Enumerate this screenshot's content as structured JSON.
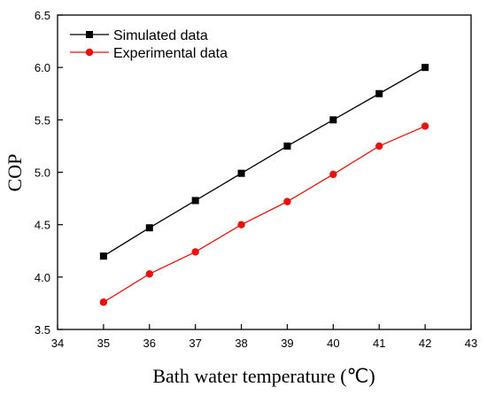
{
  "chart_data": {
    "type": "line",
    "xlabel": "Bath water temperature (℃)",
    "ylabel": "COP",
    "xlim": [
      34,
      43
    ],
    "ylim": [
      3.5,
      6.5
    ],
    "xticks": [
      "34",
      "35",
      "36",
      "37",
      "38",
      "39",
      "40",
      "41",
      "42",
      "43"
    ],
    "yticks": [
      "3.5",
      "4.0",
      "4.5",
      "5.0",
      "5.5",
      "6.0",
      "6.5"
    ],
    "grid": false,
    "legend_position": "top-left",
    "x": [
      35,
      36,
      37,
      38,
      39,
      40,
      41,
      42
    ],
    "series": [
      {
        "name": "Simulated data",
        "marker": "square",
        "color": "#000000",
        "values": [
          4.2,
          4.47,
          4.73,
          4.99,
          5.25,
          5.5,
          5.75,
          6.0
        ]
      },
      {
        "name": "Experimental data",
        "marker": "circle",
        "color": "#e8120c",
        "values": [
          3.76,
          4.03,
          4.24,
          4.5,
          4.72,
          4.98,
          5.25,
          5.44
        ]
      }
    ]
  }
}
